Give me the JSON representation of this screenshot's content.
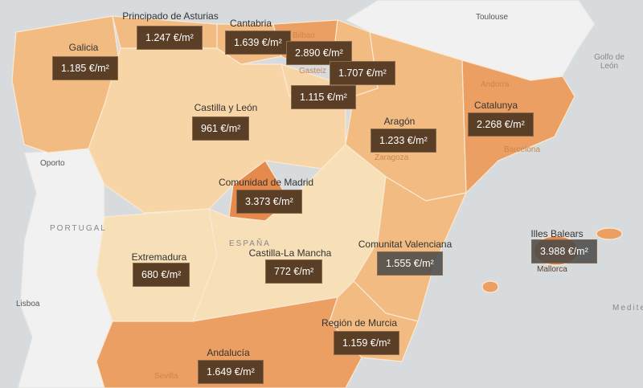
{
  "colors": {
    "sea": "#d7dbde",
    "neighbor": "#f1f1f1",
    "light": "#f7d5a6",
    "mid": "#f2bb82",
    "dark": "#ec9f62",
    "darkest": "#e58a4c",
    "label_bg": "#5a3e26"
  },
  "places": {
    "toulouse": "Toulouse",
    "golfo": "Golfo de León",
    "portugal": "PORTUGAL",
    "oporto": "Oporto",
    "lisboa": "Lisboa",
    "espana": "ESPAÑA",
    "barcelona": "Barcelona",
    "andorra": "Andorra",
    "sevilla": "Sevilla",
    "mediterraneo": "Medite",
    "bilbao": "Bilbao",
    "gasteiz": "Gasteiz",
    "zaragoza": "Zaragoza",
    "mallorca": "Mallorca"
  },
  "regions": {
    "galicia": {
      "name": "Galicia",
      "price": "1.185 €/m²"
    },
    "asturias": {
      "name": "Principado de Asturias",
      "price": "1.247 €/m²"
    },
    "cantabria": {
      "name": "Cantabria",
      "price": "1.639 €/m²"
    },
    "pais_vasco": {
      "price": "2.890 €/m²"
    },
    "navarra": {
      "price": "1.707 €/m²"
    },
    "rioja": {
      "price": "1.115 €/m²"
    },
    "castilla_leon": {
      "name": "Castilla y León",
      "price": "961 €/m²"
    },
    "aragon": {
      "name": "Aragón",
      "price": "1.233 €/m²"
    },
    "catalunya": {
      "name": "Catalunya",
      "price": "2.268 €/m²"
    },
    "madrid": {
      "name": "Comunidad de Madrid",
      "price": "3.373 €/m²"
    },
    "extremadura": {
      "name": "Extremadura",
      "price": "680 €/m²"
    },
    "castilla_mancha": {
      "name": "Castilla-La Mancha",
      "price": "772 €/m²"
    },
    "valenciana": {
      "name": "Comunitat Valenciana",
      "price": "1.555 €/m²"
    },
    "baleares": {
      "name": "Illes Balears",
      "price": "3.988 €/m²"
    },
    "murcia": {
      "name": "Región de Murcia",
      "price": "1.159 €/m²"
    },
    "andalucia": {
      "name": "Andalucía",
      "price": "1.649 €/m²"
    }
  }
}
